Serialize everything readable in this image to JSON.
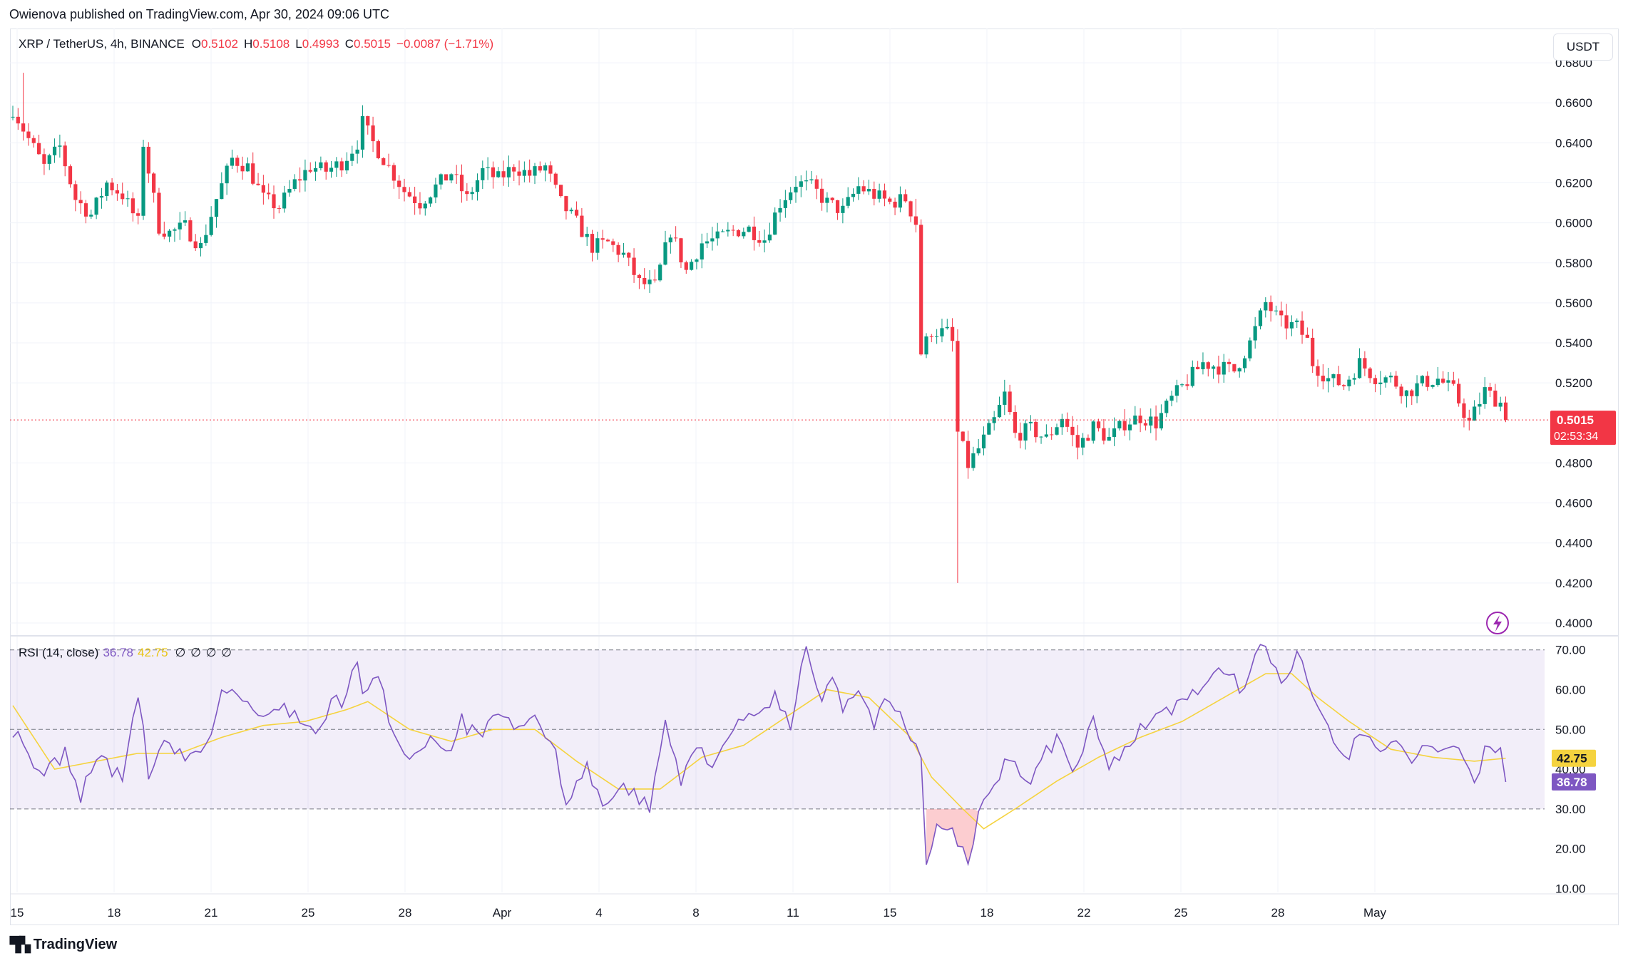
{
  "header": {
    "published_line": "Owienova published on TradingView.com, Apr 30, 2024 09:06 UTC"
  },
  "legend": {
    "symbol": "XRP / TetherUS, 4h, BINANCE",
    "o_label": "O",
    "o_value": "0.5102",
    "h_label": "H",
    "h_value": "0.5108",
    "l_label": "L",
    "l_value": "0.4993",
    "c_label": "C",
    "c_value": "0.5015",
    "change": "−0.0087 (−1.71%)"
  },
  "currency_button": "USDT",
  "price_tag": {
    "value": "0.5015",
    "countdown": "02:53:34"
  },
  "rsi_legend": {
    "label": "RSI (14, close)",
    "rsi_value": "36.78",
    "ma_value": "42.75",
    "extra": "∅ ∅ ∅ ∅"
  },
  "rsi_tags": {
    "ma": "42.75",
    "rsi": "36.78"
  },
  "footer": {
    "brand": "TradingView"
  },
  "colors": {
    "up": "#089981",
    "down": "#f23645",
    "rsi": "#7e57c2",
    "rsi_ma": "#f5d33f",
    "band": "#7e57c2"
  },
  "chart_data": [
    {
      "type": "candlestick",
      "title": "XRP / TetherUS, 4h, BINANCE",
      "y_axis_ticks": [
        "0.6800",
        "0.6600",
        "0.6400",
        "0.6200",
        "0.6000",
        "0.5800",
        "0.5600",
        "0.5400",
        "0.5200",
        "0.4800",
        "0.4600",
        "0.4400",
        "0.4200",
        "0.4000"
      ],
      "ylim": [
        0.4,
        0.69
      ],
      "x_axis_ticks": [
        "15",
        "18",
        "21",
        "25",
        "28",
        "Apr",
        "4",
        "8",
        "11",
        "15",
        "18",
        "22",
        "25",
        "28",
        "May"
      ],
      "last_price": 0.5015,
      "anchors": [
        [
          0,
          0.657
        ],
        [
          3,
          0.642
        ],
        [
          6,
          0.628
        ],
        [
          9,
          0.638
        ],
        [
          12,
          0.612
        ],
        [
          15,
          0.604
        ],
        [
          18,
          0.62
        ],
        [
          21,
          0.614
        ],
        [
          24,
          0.6
        ],
        [
          25,
          0.64
        ],
        [
          28,
          0.598
        ],
        [
          30,
          0.595
        ],
        [
          33,
          0.598
        ],
        [
          36,
          0.588
        ],
        [
          39,
          0.612
        ],
        [
          42,
          0.632
        ],
        [
          45,
          0.628
        ],
        [
          48,
          0.612
        ],
        [
          51,
          0.608
        ],
        [
          54,
          0.62
        ],
        [
          57,
          0.628
        ],
        [
          60,
          0.626
        ],
        [
          63,
          0.63
        ],
        [
          66,
          0.64
        ],
        [
          67,
          0.65
        ],
        [
          69,
          0.64
        ],
        [
          72,
          0.628
        ],
        [
          75,
          0.616
        ],
        [
          78,
          0.61
        ],
        [
          81,
          0.618
        ],
        [
          84,
          0.625
        ],
        [
          87,
          0.612
        ],
        [
          90,
          0.626
        ],
        [
          93,
          0.622
        ],
        [
          96,
          0.628
        ],
        [
          99,
          0.624
        ],
        [
          102,
          0.628
        ],
        [
          105,
          0.61
        ],
        [
          108,
          0.6
        ],
        [
          111,
          0.588
        ],
        [
          114,
          0.59
        ],
        [
          117,
          0.584
        ],
        [
          120,
          0.57
        ],
        [
          123,
          0.568
        ],
        [
          126,
          0.596
        ],
        [
          129,
          0.576
        ],
        [
          132,
          0.59
        ],
        [
          135,
          0.592
        ],
        [
          138,
          0.596
        ],
        [
          141,
          0.597
        ],
        [
          144,
          0.592
        ],
        [
          147,
          0.61
        ],
        [
          150,
          0.62
        ],
        [
          153,
          0.618
        ],
        [
          156,
          0.61
        ],
        [
          159,
          0.606
        ],
        [
          162,
          0.618
        ],
        [
          165,
          0.614
        ],
        [
          168,
          0.61
        ],
        [
          171,
          0.612
        ],
        [
          173,
          0.6
        ],
        [
          174,
          0.535
        ],
        [
          176,
          0.546
        ],
        [
          179,
          0.545
        ],
        [
          180,
          0.54
        ],
        [
          181,
          0.495
        ],
        [
          183,
          0.479
        ],
        [
          185,
          0.487
        ],
        [
          188,
          0.501
        ],
        [
          190,
          0.514
        ],
        [
          192,
          0.494
        ],
        [
          195,
          0.497
        ],
        [
          198,
          0.492
        ],
        [
          201,
          0.503
        ],
        [
          204,
          0.488
        ],
        [
          207,
          0.498
        ],
        [
          210,
          0.492
        ],
        [
          213,
          0.5
        ],
        [
          216,
          0.503
        ],
        [
          219,
          0.5
        ],
        [
          222,
          0.512
        ],
        [
          225,
          0.521
        ],
        [
          228,
          0.53
        ],
        [
          231,
          0.528
        ],
        [
          234,
          0.526
        ],
        [
          237,
          0.54
        ],
        [
          240,
          0.56
        ],
        [
          243,
          0.55
        ],
        [
          246,
          0.548
        ],
        [
          248,
          0.541
        ],
        [
          249,
          0.53
        ],
        [
          252,
          0.522
        ],
        [
          255,
          0.519
        ],
        [
          258,
          0.53
        ],
        [
          261,
          0.523
        ],
        [
          264,
          0.522
        ],
        [
          267,
          0.515
        ],
        [
          270,
          0.52
        ],
        [
          273,
          0.522
        ],
        [
          276,
          0.516
        ],
        [
          279,
          0.5
        ],
        [
          282,
          0.516
        ],
        [
          285,
          0.51
        ],
        [
          286,
          0.5015
        ]
      ],
      "key_levels": {
        "high": 0.675,
        "low": 0.42
      }
    },
    {
      "type": "line",
      "title": "RSI (14, close)",
      "y_axis_ticks": [
        "70.00",
        "60.00",
        "50.00",
        "40.00",
        "30.00",
        "20.00",
        "10.00"
      ],
      "ylim": [
        9,
        73
      ],
      "bands": {
        "upper": 70,
        "middle": 50,
        "lower": 30
      },
      "series": [
        {
          "name": "RSI",
          "anchors": [
            [
              0,
              50
            ],
            [
              5,
              38
            ],
            [
              10,
              44
            ],
            [
              13,
              33
            ],
            [
              16,
              44
            ],
            [
              21,
              37
            ],
            [
              24,
              60
            ],
            [
              26,
              38
            ],
            [
              29,
              46
            ],
            [
              34,
              42
            ],
            [
              37,
              45
            ],
            [
              40,
              60
            ],
            [
              44,
              58
            ],
            [
              48,
              52
            ],
            [
              52,
              56
            ],
            [
              56,
              52
            ],
            [
              58,
              48
            ],
            [
              61,
              56
            ],
            [
              64,
              58
            ],
            [
              66,
              68
            ],
            [
              67,
              60
            ],
            [
              70,
              63
            ],
            [
              72,
              53
            ],
            [
              76,
              42
            ],
            [
              80,
              49
            ],
            [
              83,
              44
            ],
            [
              86,
              52
            ],
            [
              89,
              48
            ],
            [
              93,
              53
            ],
            [
              96,
              50
            ],
            [
              100,
              52
            ],
            [
              103,
              48
            ],
            [
              106,
              33
            ],
            [
              110,
              40
            ],
            [
              114,
              30
            ],
            [
              117,
              37
            ],
            [
              120,
              32
            ],
            [
              122,
              30
            ],
            [
              125,
              52
            ],
            [
              128,
              36
            ],
            [
              131,
              46
            ],
            [
              134,
              42
            ],
            [
              138,
              50
            ],
            [
              142,
              53
            ],
            [
              146,
              58
            ],
            [
              149,
              50
            ],
            [
              151,
              66
            ],
            [
              152,
              71
            ],
            [
              155,
              58
            ],
            [
              157,
              64
            ],
            [
              159,
              56
            ],
            [
              162,
              60
            ],
            [
              165,
              52
            ],
            [
              168,
              58
            ],
            [
              171,
              50
            ],
            [
              174,
              43
            ],
            [
              175,
              17
            ],
            [
              177,
              27
            ],
            [
              180,
              24
            ],
            [
              182,
              20
            ],
            [
              183,
              15
            ],
            [
              185,
              29
            ],
            [
              188,
              35
            ],
            [
              191,
              44
            ],
            [
              194,
              36
            ],
            [
              197,
              42
            ],
            [
              200,
              48
            ],
            [
              203,
              38
            ],
            [
              207,
              52
            ],
            [
              210,
              40
            ],
            [
              213,
              46
            ],
            [
              216,
              50
            ],
            [
              220,
              54
            ],
            [
              224,
              56
            ],
            [
              228,
              62
            ],
            [
              232,
              64
            ],
            [
              236,
              60
            ],
            [
              238,
              68
            ],
            [
              240,
              72
            ],
            [
              243,
              62
            ],
            [
              246,
              68
            ],
            [
              249,
              60
            ],
            [
              251,
              55
            ],
            [
              253,
              48
            ],
            [
              256,
              44
            ],
            [
              259,
              50
            ],
            [
              262,
              44
            ],
            [
              265,
              48
            ],
            [
              268,
              42
            ],
            [
              271,
              47
            ],
            [
              274,
              43
            ],
            [
              277,
              46
            ],
            [
              280,
              36
            ],
            [
              282,
              46
            ],
            [
              285,
              45
            ],
            [
              286,
              36.78
            ]
          ]
        },
        {
          "name": "RSI-based MA",
          "anchors": [
            [
              0,
              56
            ],
            [
              8,
              40
            ],
            [
              16,
              42
            ],
            [
              24,
              44
            ],
            [
              32,
              44
            ],
            [
              40,
              48
            ],
            [
              48,
              51
            ],
            [
              56,
              52
            ],
            [
              64,
              55
            ],
            [
              68,
              57
            ],
            [
              76,
              50
            ],
            [
              84,
              47
            ],
            [
              92,
              50
            ],
            [
              100,
              50
            ],
            [
              108,
              42
            ],
            [
              116,
              35
            ],
            [
              124,
              35
            ],
            [
              132,
              43
            ],
            [
              140,
              46
            ],
            [
              148,
              53
            ],
            [
              156,
              60
            ],
            [
              164,
              58
            ],
            [
              172,
              48
            ],
            [
              176,
              38
            ],
            [
              182,
              30
            ],
            [
              186,
              25
            ],
            [
              192,
              30
            ],
            [
              200,
              37
            ],
            [
              208,
              43
            ],
            [
              216,
              48
            ],
            [
              224,
              52
            ],
            [
              232,
              58
            ],
            [
              240,
              64
            ],
            [
              245,
              64
            ],
            [
              250,
              58
            ],
            [
              256,
              52
            ],
            [
              264,
              45
            ],
            [
              272,
              43
            ],
            [
              280,
              42
            ],
            [
              286,
              42.75
            ]
          ]
        }
      ]
    }
  ]
}
